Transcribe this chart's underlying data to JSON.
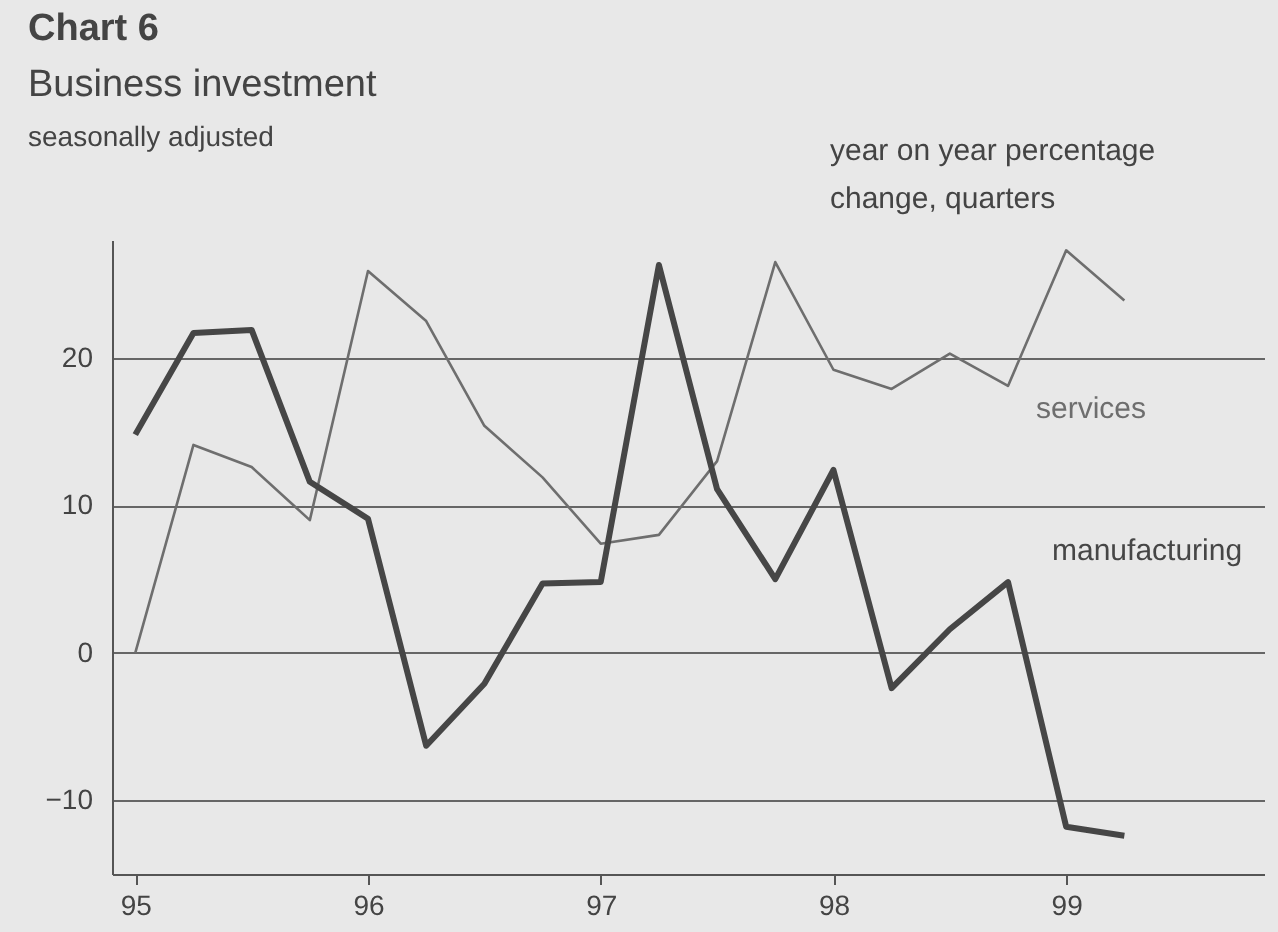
{
  "chart_data": {
    "type": "line",
    "title": "Chart 6",
    "subtitle": "Business investment",
    "annotations": [
      "seasonally adjusted",
      "year on year percentage change, quarters"
    ],
    "x": [
      95,
      95.25,
      95.5,
      95.75,
      96,
      96.25,
      96.5,
      96.75,
      97,
      97.25,
      97.5,
      97.75,
      98,
      98.25,
      98.5,
      98.75,
      99,
      99.25
    ],
    "series": [
      {
        "name": "services",
        "color": "#6e6e6e",
        "values": [
          0,
          14.1,
          12.6,
          9.0,
          25.9,
          22.5,
          15.4,
          11.9,
          7.4,
          8.0,
          13.0,
          26.5,
          19.2,
          17.9,
          20.3,
          18.1,
          27.3,
          23.9
        ]
      },
      {
        "name": "manufacturing",
        "color": "#464646",
        "values": [
          14.8,
          21.7,
          21.9,
          11.6,
          9.1,
          -6.3,
          -2.1,
          4.7,
          4.8,
          26.3,
          11.1,
          5.0,
          12.4,
          -2.4,
          1.6,
          4.8,
          -11.8,
          -12.4
        ]
      }
    ],
    "xlim": [
      94.9,
      99.85
    ],
    "xticks": [
      95,
      96,
      97,
      98,
      99
    ],
    "ylim": [
      -15,
      28
    ],
    "yticks": [
      -10,
      0,
      10,
      20
    ],
    "grid": "y"
  }
}
